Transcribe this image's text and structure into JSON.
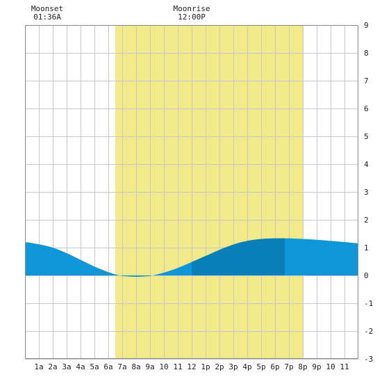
{
  "chart_data": {
    "type": "area",
    "title": "",
    "xlabel": "",
    "ylabel": "",
    "x_unit": "hour of day",
    "xlim": [
      0,
      24
    ],
    "ylim": [
      -3,
      9
    ],
    "grid": true,
    "x_tick_labels": [
      "1a",
      "2a",
      "3a",
      "4a",
      "5a",
      "6a",
      "7a",
      "8a",
      "9a",
      "10",
      "11",
      "12",
      "1p",
      "2p",
      "3p",
      "4p",
      "5p",
      "6p",
      "7p",
      "8p",
      "9p",
      "10",
      "11"
    ],
    "y_ticks": [
      -3,
      -2,
      -1,
      0,
      1,
      2,
      3,
      4,
      5,
      6,
      7,
      8,
      9
    ],
    "daylight": {
      "start": 6.5,
      "end": 20.0,
      "color": "#f2e98a"
    },
    "moon_events": [
      {
        "label": "Moonset",
        "time_label": "01:36A",
        "time": 1.6
      },
      {
        "label": "Moonrise",
        "time_label": "12:00P",
        "time": 12.0
      }
    ],
    "highlight_window": {
      "start": 12.0,
      "end": 18.7,
      "color": "#0a7fb8"
    },
    "series": [
      {
        "color": "#0f96d8",
        "x": [
          0,
          1,
          2,
          3,
          4,
          5,
          6,
          6.5,
          7,
          7.5,
          8,
          8.5,
          9,
          10,
          11,
          12,
          13,
          14,
          15,
          16,
          17,
          18,
          18.5,
          19,
          20,
          21,
          22,
          23,
          24
        ],
        "values": [
          1.2,
          1.12,
          1.0,
          0.8,
          0.56,
          0.32,
          0.12,
          0.04,
          -0.02,
          -0.04,
          -0.05,
          -0.04,
          -0.02,
          0.1,
          0.27,
          0.48,
          0.7,
          0.92,
          1.11,
          1.24,
          1.31,
          1.33,
          1.33,
          1.33,
          1.31,
          1.28,
          1.24,
          1.2,
          1.15
        ]
      }
    ]
  }
}
